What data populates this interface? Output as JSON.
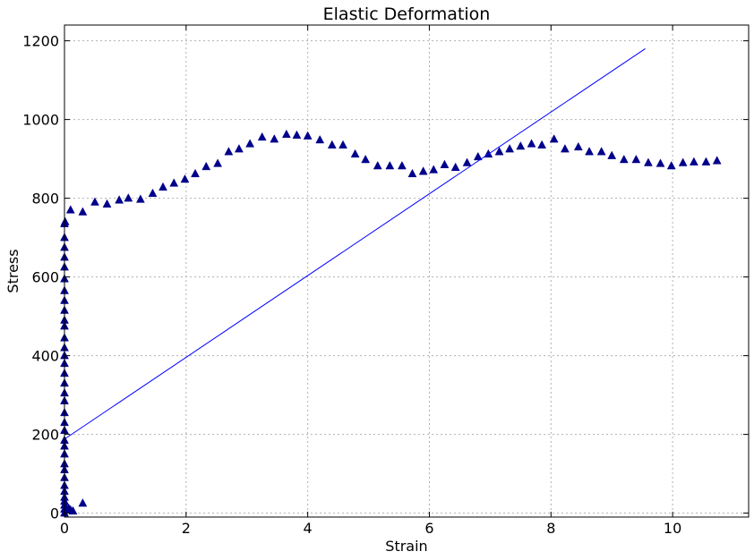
{
  "chart_data": {
    "type": "scatter",
    "title": "Elastic Deformation",
    "xlabel": "Strain",
    "ylabel": "Stress",
    "xlim": [
      0,
      11.25
    ],
    "ylim": [
      -10,
      1240
    ],
    "xticks": [
      0,
      2,
      4,
      6,
      8,
      10
    ],
    "yticks": [
      0,
      200,
      400,
      600,
      800,
      1000,
      1200
    ],
    "xtick_labels": [
      "0",
      "2",
      "4",
      "6",
      "8",
      "10"
    ],
    "ytick_labels": [
      "0",
      "200",
      "400",
      "600",
      "800",
      "1000",
      "1200"
    ],
    "grid": true,
    "series": [
      {
        "marker": "triangle",
        "color": "#00008b",
        "points": [
          [
            0,
            0
          ],
          [
            0,
            10
          ],
          [
            0,
            20
          ],
          [
            0,
            30
          ],
          [
            0,
            40
          ],
          [
            0,
            55
          ],
          [
            0,
            70
          ],
          [
            0,
            90
          ],
          [
            0,
            110
          ],
          [
            0,
            125
          ],
          [
            0,
            150
          ],
          [
            0,
            170
          ],
          [
            0,
            185
          ],
          [
            0,
            210
          ],
          [
            0,
            230
          ],
          [
            0,
            255
          ],
          [
            0,
            285
          ],
          [
            0,
            305
          ],
          [
            0,
            330
          ],
          [
            0,
            355
          ],
          [
            0,
            380
          ],
          [
            0,
            400
          ],
          [
            0,
            420
          ],
          [
            0,
            445
          ],
          [
            0,
            475
          ],
          [
            0,
            490
          ],
          [
            0,
            515
          ],
          [
            0,
            540
          ],
          [
            0,
            565
          ],
          [
            0,
            595
          ],
          [
            0,
            625
          ],
          [
            0,
            650
          ],
          [
            0,
            675
          ],
          [
            0,
            700
          ],
          [
            0,
            735
          ],
          [
            0.01,
            740
          ],
          [
            0.03,
            15
          ],
          [
            0.07,
            12
          ],
          [
            0.1,
            8
          ],
          [
            0.14,
            5
          ],
          [
            0.3,
            25
          ],
          [
            0.1,
            770
          ],
          [
            0.3,
            765
          ],
          [
            0.5,
            790
          ],
          [
            0.7,
            785
          ],
          [
            0.9,
            795
          ],
          [
            1.05,
            800
          ],
          [
            1.25,
            797
          ],
          [
            1.45,
            812
          ],
          [
            1.62,
            828
          ],
          [
            1.8,
            838
          ],
          [
            1.98,
            848
          ],
          [
            2.15,
            862
          ],
          [
            2.33,
            880
          ],
          [
            2.52,
            888
          ],
          [
            2.7,
            918
          ],
          [
            2.87,
            925
          ],
          [
            3.05,
            938
          ],
          [
            3.25,
            955
          ],
          [
            3.45,
            950
          ],
          [
            3.65,
            962
          ],
          [
            3.82,
            960
          ],
          [
            4.0,
            958
          ],
          [
            4.2,
            948
          ],
          [
            4.4,
            935
          ],
          [
            4.58,
            935
          ],
          [
            4.78,
            912
          ],
          [
            4.95,
            898
          ],
          [
            5.15,
            882
          ],
          [
            5.35,
            882
          ],
          [
            5.55,
            882
          ],
          [
            5.72,
            862
          ],
          [
            5.9,
            868
          ],
          [
            6.07,
            872
          ],
          [
            6.25,
            885
          ],
          [
            6.43,
            878
          ],
          [
            6.62,
            890
          ],
          [
            6.8,
            905
          ],
          [
            6.97,
            912
          ],
          [
            7.15,
            918
          ],
          [
            7.32,
            925
          ],
          [
            7.5,
            932
          ],
          [
            7.68,
            938
          ],
          [
            7.85,
            935
          ],
          [
            8.05,
            950
          ],
          [
            8.23,
            925
          ],
          [
            8.45,
            930
          ],
          [
            8.63,
            918
          ],
          [
            8.83,
            918
          ],
          [
            9.0,
            908
          ],
          [
            9.2,
            898
          ],
          [
            9.4,
            898
          ],
          [
            9.6,
            890
          ],
          [
            9.8,
            888
          ],
          [
            9.98,
            882
          ],
          [
            10.17,
            890
          ],
          [
            10.35,
            892
          ],
          [
            10.55,
            892
          ],
          [
            10.73,
            895
          ]
        ]
      },
      {
        "marker": "line",
        "color": "#0000ff",
        "points": [
          [
            0,
            188
          ],
          [
            9.55,
            1180
          ]
        ]
      }
    ]
  }
}
